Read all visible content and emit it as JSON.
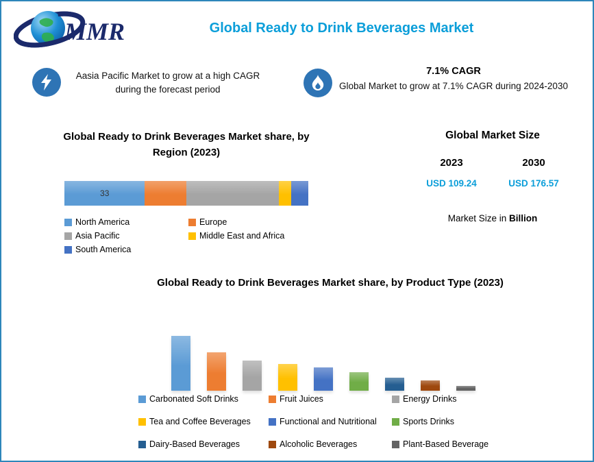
{
  "header": {
    "logo_text": "MMR",
    "title": "Global Ready to Drink Beverages Market"
  },
  "callouts": [
    {
      "icon": "lightning-icon",
      "text": "Aasia Pacific Market to grow at a high CAGR during the forecast period"
    },
    {
      "icon": "flame-icon",
      "headline": "7.1% CAGR",
      "text": "Global Market to grow at 7.1% CAGR during 2024-2030"
    }
  ],
  "market_size": {
    "title": "Global Market Size",
    "years": [
      "2023",
      "2030"
    ],
    "values": [
      "USD 109.24",
      "USD 176.57"
    ],
    "note_prefix": "Market Size in ",
    "note_bold": "Billion",
    "value_color": "#0b9ed9"
  },
  "chart_data": [
    {
      "type": "bar",
      "subtype": "horizontal-stacked",
      "title": "Global Ready to Drink Beverages Market share, by Region (2023)",
      "categories": [
        "North America",
        "Europe",
        "Asia Pacific",
        "Middle East and Africa",
        "South America"
      ],
      "values": [
        33,
        17,
        38,
        5,
        7
      ],
      "colors": [
        "#5b9bd5",
        "#ed7d31",
        "#a5a5a5",
        "#ffc000",
        "#4472c4"
      ],
      "data_labels": [
        "33",
        "",
        "",
        "",
        ""
      ],
      "legend_position": "bottom",
      "xlim": [
        0,
        100
      ]
    },
    {
      "type": "bar",
      "title": "Global Ready to Drink Beverages Market share, by Product Type (2023)",
      "categories": [
        "Carbonated Soft Drinks",
        "Fruit Juices",
        "Energy Drinks",
        "Tea and Coffee Beverages",
        "Functional and Nutritional",
        "Sports Drinks",
        "Dairy-Based Beverages",
        "Alcoholic Beverages",
        "Plant-Based Beverage"
      ],
      "values": [
        33,
        23,
        18,
        16,
        14,
        11,
        8,
        6,
        3
      ],
      "colors": [
        "#5b9bd5",
        "#ed7d31",
        "#a5a5a5",
        "#ffc000",
        "#4472c4",
        "#70ad47",
        "#255e91",
        "#9e480e",
        "#636363"
      ],
      "ylim": [
        0,
        33
      ],
      "legend_position": "bottom",
      "axes_hidden": true
    }
  ]
}
